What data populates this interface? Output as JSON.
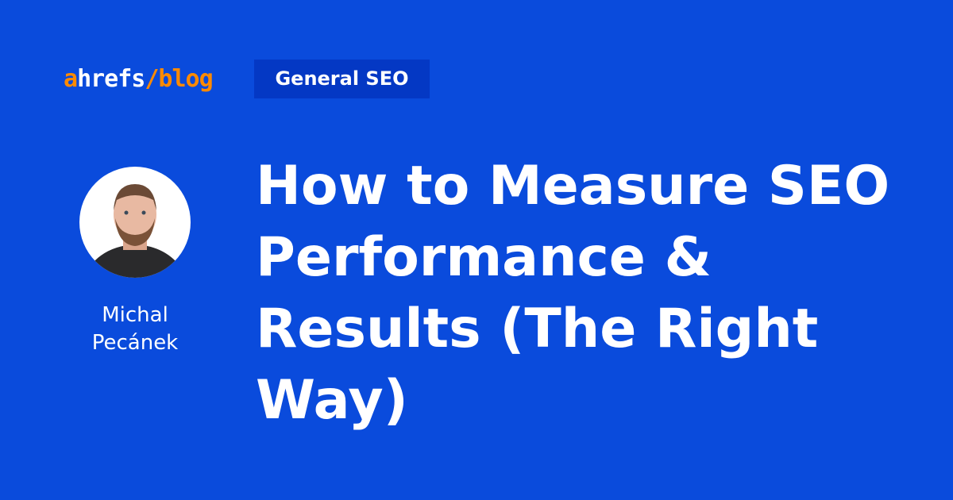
{
  "brand": {
    "logo_main": "ahrefs",
    "logo_sub": "/blog",
    "accent": "#ff8a00",
    "background": "#0a4bdc"
  },
  "category": {
    "label": "General SEO"
  },
  "author": {
    "first": "Michal",
    "last": "Pecánek",
    "photo": "author-photo"
  },
  "article": {
    "title": "How to Measure SEO Performance & Results (The Right Way)"
  }
}
